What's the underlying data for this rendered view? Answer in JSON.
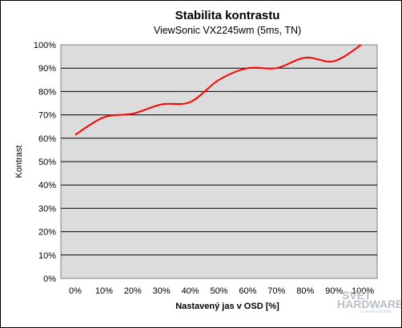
{
  "chart_data": {
    "type": "line",
    "title": "Stabilita kontrastu",
    "subtitle": "ViewSonic VX2245wm  (5ms, TN)",
    "xlabel": "Nastavený jas v OSD [%]",
    "ylabel": "Kontrast",
    "categories": [
      "0%",
      "10%",
      "20%",
      "30%",
      "40%",
      "50%",
      "60%",
      "70%",
      "80%",
      "90%",
      "100%"
    ],
    "x": [
      0,
      10,
      20,
      30,
      40,
      50,
      60,
      70,
      80,
      90,
      100
    ],
    "series": [
      {
        "values": [
          61.5,
          69,
          70.5,
          74.5,
          75.5,
          85,
          90,
          90,
          94.5,
          93,
          100.5
        ],
        "color": "#ff0000"
      }
    ],
    "yticks": [
      "0%",
      "10%",
      "20%",
      "30%",
      "40%",
      "50%",
      "60%",
      "70%",
      "80%",
      "90%",
      "100%"
    ],
    "ylim": [
      0,
      100
    ],
    "grid": true,
    "plot_background": "#dcdcdc"
  },
  "watermark": {
    "line1": "SVET",
    "line2": "HARDWARE",
    "line3": "...ve svete počítačů"
  }
}
